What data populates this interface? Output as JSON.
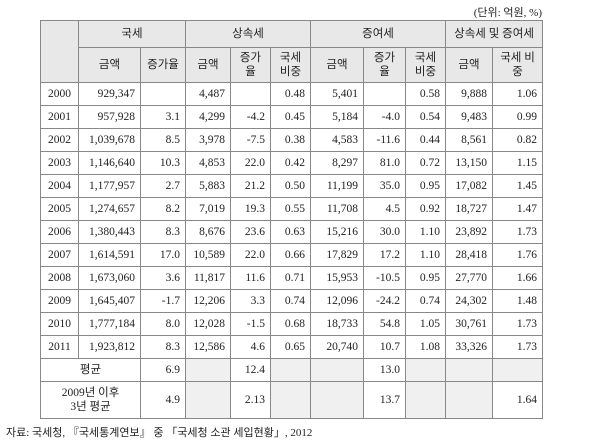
{
  "unit_note": "(단위: 억원, %)",
  "table": {
    "header": {
      "groups": [
        "국세",
        "상속세",
        "증여세",
        "상속세 및 증여세"
      ],
      "columns": [
        "금액",
        "증가율",
        "금액",
        "증가율",
        "국세 비중",
        "금액",
        "증가율",
        "국세 비중",
        "금액",
        "국세 비중"
      ]
    },
    "rows": [
      [
        "2000",
        "929,347",
        null,
        "4,487",
        null,
        "0.48",
        "5,401",
        null,
        "0.58",
        "9,888",
        "1.06"
      ],
      [
        "2001",
        "957,928",
        "3.1",
        "4,299",
        "-4.2",
        "0.45",
        "5,184",
        "-4.0",
        "0.54",
        "9,483",
        "0.99"
      ],
      [
        "2002",
        "1,039,678",
        "8.5",
        "3,978",
        "-7.5",
        "0.38",
        "4,583",
        "-11.6",
        "0.44",
        "8,561",
        "0.82"
      ],
      [
        "2003",
        "1,146,640",
        "10.3",
        "4,853",
        "22.0",
        "0.42",
        "8,297",
        "81.0",
        "0.72",
        "13,150",
        "1.15"
      ],
      [
        "2004",
        "1,177,957",
        "2.7",
        "5,883",
        "21.2",
        "0.50",
        "11,199",
        "35.0",
        "0.95",
        "17,082",
        "1.45"
      ],
      [
        "2005",
        "1,274,657",
        "8.2",
        "7,019",
        "19.3",
        "0.55",
        "11,708",
        "4.5",
        "0.92",
        "18,727",
        "1.47"
      ],
      [
        "2006",
        "1,380,443",
        "8.3",
        "8,676",
        "23.6",
        "0.63",
        "15,216",
        "30.0",
        "1.10",
        "23,892",
        "1.73"
      ],
      [
        "2007",
        "1,614,591",
        "17.0",
        "10,589",
        "22.0",
        "0.66",
        "17,829",
        "17.2",
        "1.10",
        "28,418",
        "1.76"
      ],
      [
        "2008",
        "1,673,060",
        "3.6",
        "11,817",
        "11.6",
        "0.71",
        "15,953",
        "-10.5",
        "0.95",
        "27,770",
        "1.66"
      ],
      [
        "2009",
        "1,645,407",
        "-1.7",
        "12,206",
        "3.3",
        "0.74",
        "12,096",
        "-24.2",
        "0.74",
        "24,302",
        "1.48"
      ],
      [
        "2010",
        "1,777,184",
        "8.0",
        "12,028",
        "-1.5",
        "0.68",
        "18,733",
        "54.8",
        "1.05",
        "30,761",
        "1.73"
      ],
      [
        "2011",
        "1,923,812",
        "8.3",
        "12,586",
        "4.6",
        "0.65",
        "20,740",
        "10.7",
        "1.08",
        "33,326",
        "1.73"
      ]
    ],
    "summary": [
      {
        "label": "평균",
        "cells": [
          "6.9",
          null,
          "12.4",
          null,
          null,
          "13.0",
          null,
          null,
          null
        ]
      },
      {
        "label": "2009년 이후\n3년 평균",
        "cells": [
          "4.9",
          null,
          "2.13",
          null,
          null,
          "13.7",
          null,
          null,
          "1.64"
        ]
      }
    ]
  },
  "source": "자료: 국세청, 『국세통계연보』 중 「국세청 소관 세입현황」, 2012"
}
